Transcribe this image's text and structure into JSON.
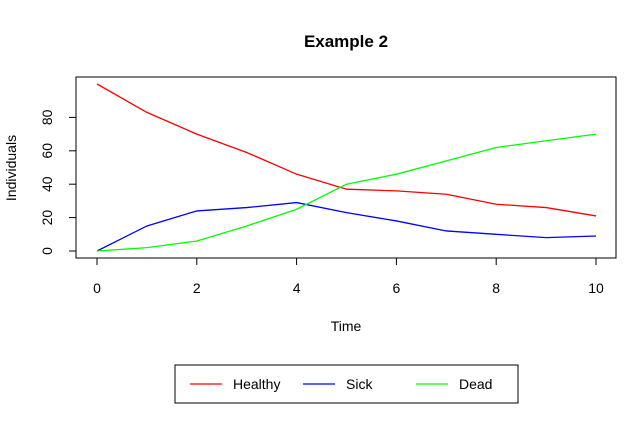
{
  "chart_data": {
    "type": "line",
    "title": "Example 2",
    "xlabel": "Time",
    "ylabel": "Individuals",
    "xlim": [
      0,
      10
    ],
    "ylim": [
      0,
      100
    ],
    "x_ticks": [
      0,
      2,
      4,
      6,
      8,
      10
    ],
    "y_ticks": [
      0,
      20,
      40,
      60,
      80
    ],
    "grid": false,
    "legend_position": "bottom",
    "x": [
      0,
      1,
      2,
      3,
      4,
      5,
      6,
      7,
      8,
      9,
      10
    ],
    "series": [
      {
        "name": "Healthy",
        "color": "#ff0000",
        "values": [
          100,
          83,
          70,
          59,
          46,
          37,
          36,
          34,
          28,
          26,
          21
        ]
      },
      {
        "name": "Sick",
        "color": "#0000ff",
        "values": [
          0,
          15,
          24,
          26,
          29,
          23,
          18,
          12,
          10,
          8,
          9
        ]
      },
      {
        "name": "Dead",
        "color": "#00ff00",
        "values": [
          0,
          2,
          6,
          15,
          25,
          40,
          46,
          54,
          62,
          66,
          70
        ]
      }
    ]
  }
}
